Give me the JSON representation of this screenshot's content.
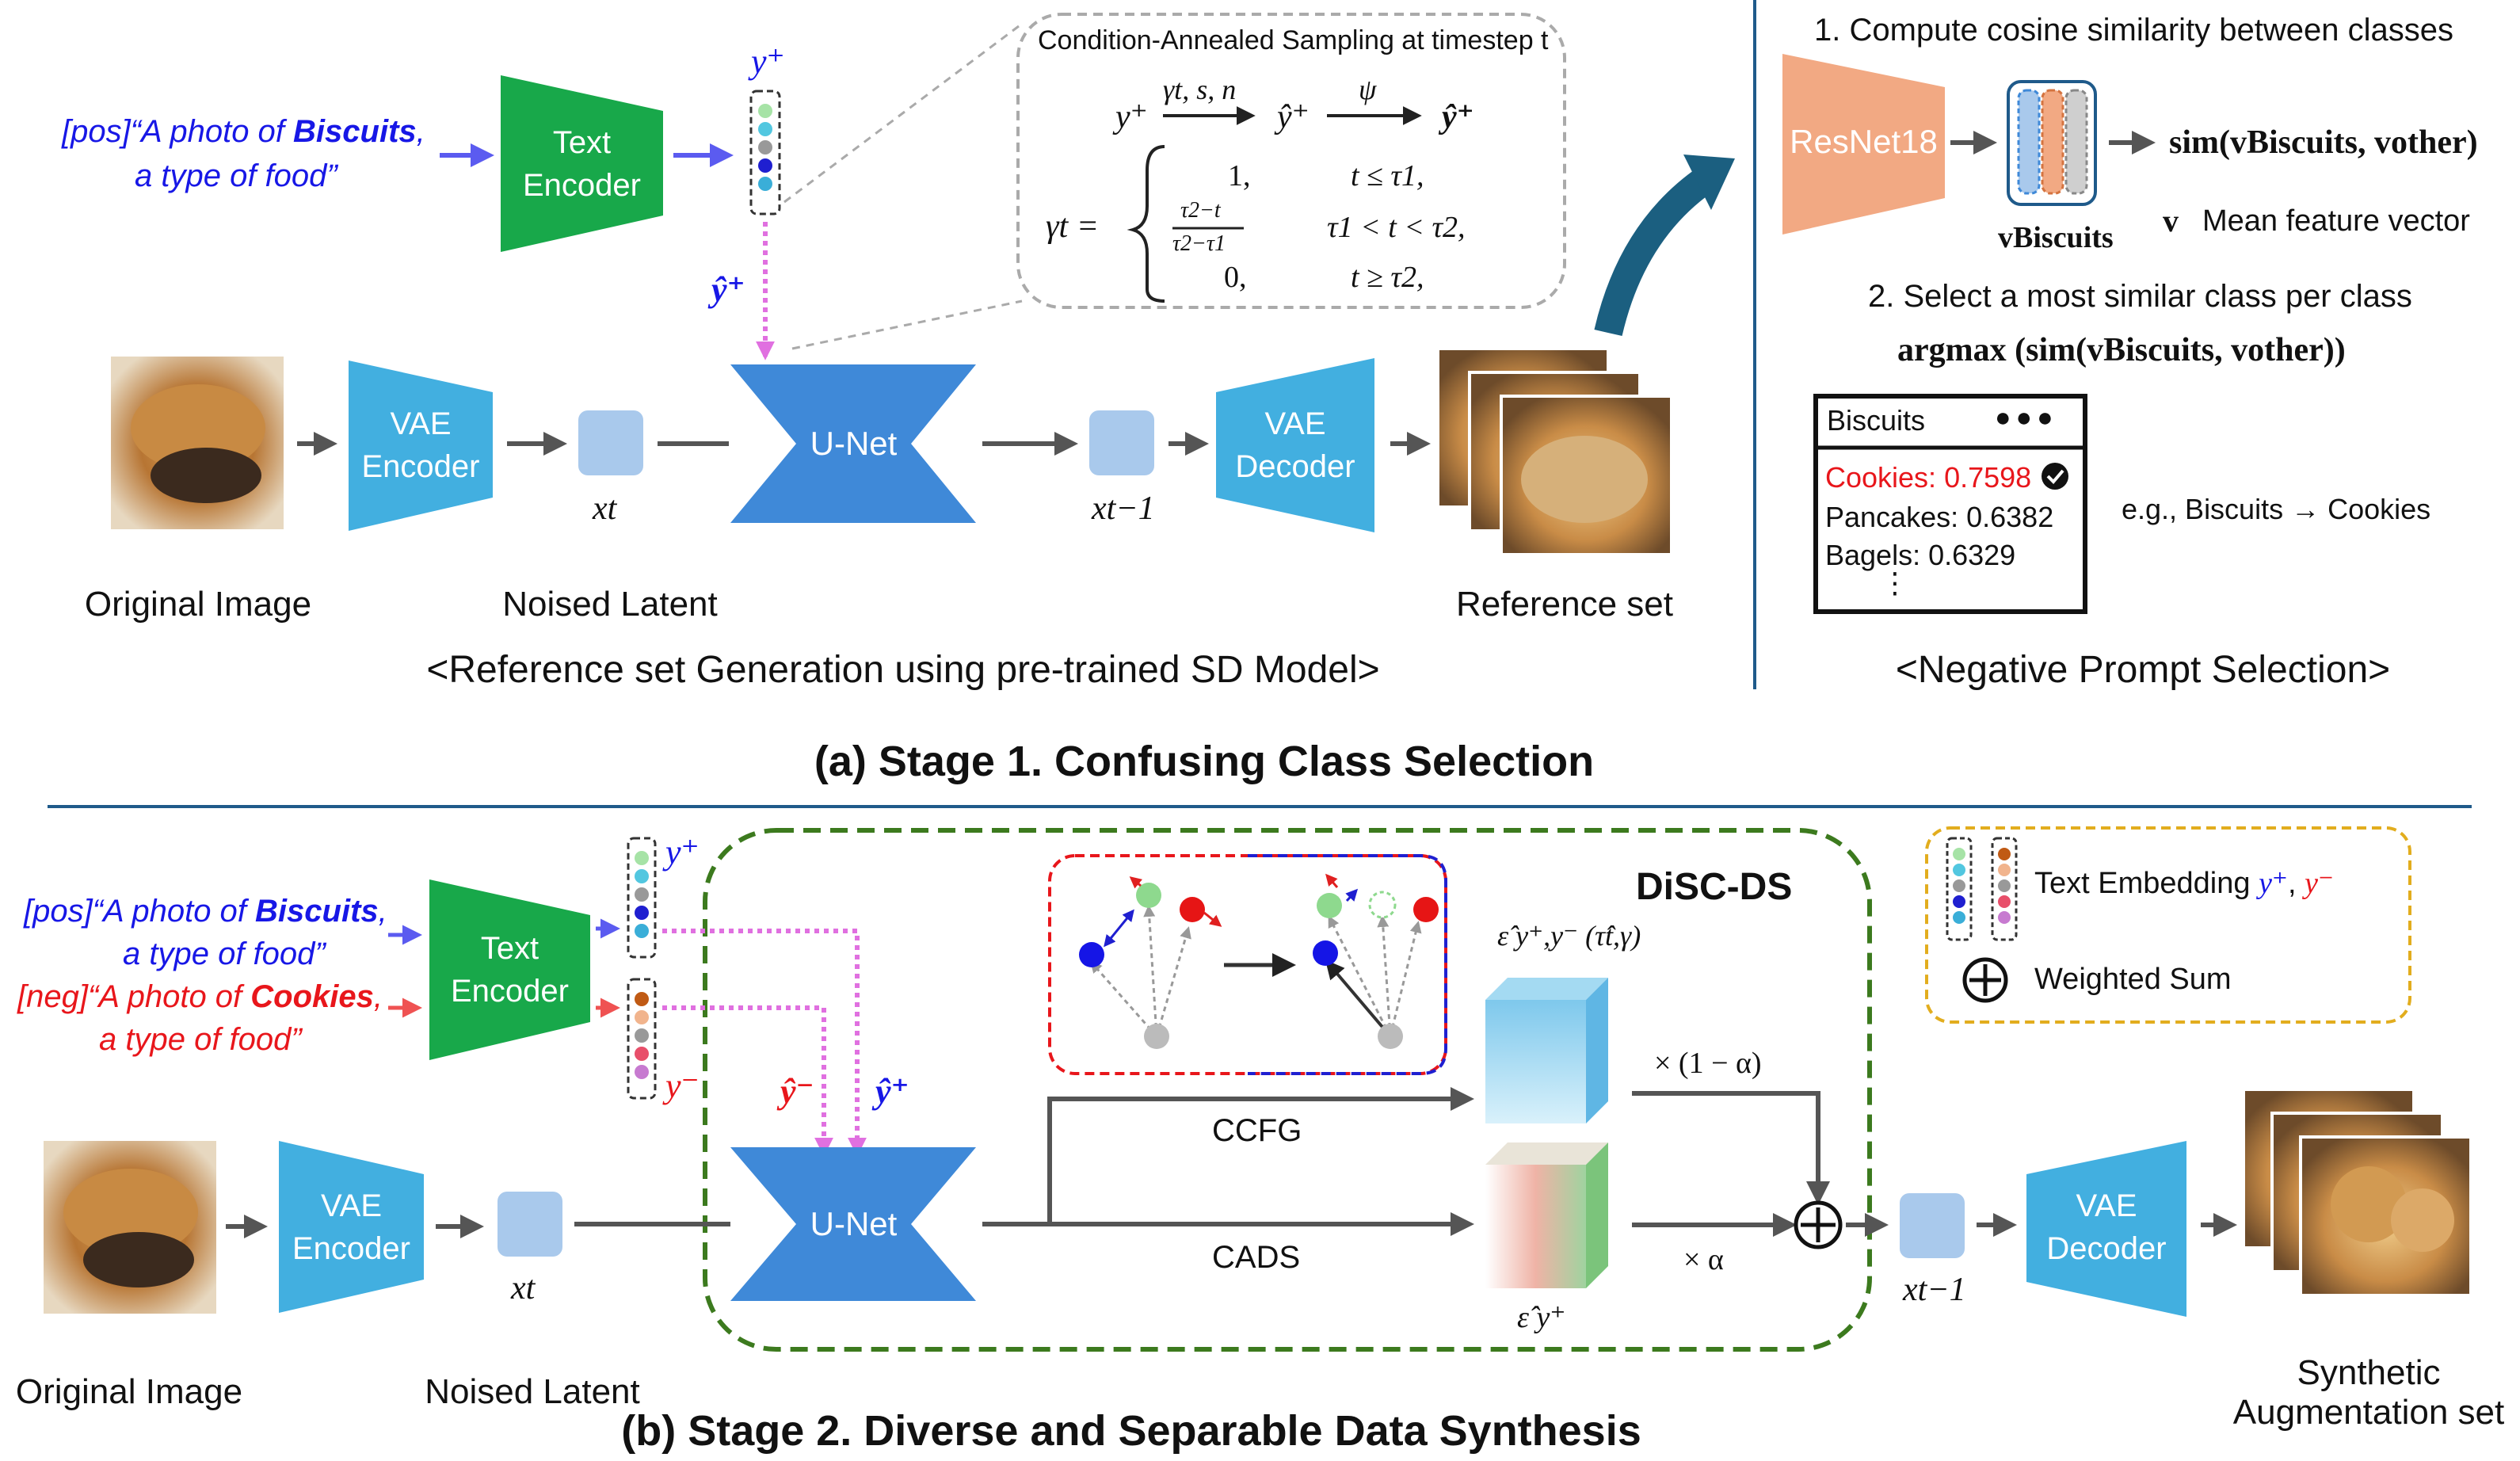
{
  "stage1": {
    "title": "(a) Stage 1. Confusing Class Selection",
    "pos_prompt_line1_pre": "[pos]“A photo of ",
    "pos_prompt_class": "Biscuits",
    "pos_prompt_line1_post": ",",
    "pos_prompt_line2": "a type of food”",
    "text_encoder_line1": "Text",
    "text_encoder_line2": "Encoder",
    "y_plus": "y⁺",
    "y_hat_plus": "ŷ⁺",
    "condition_title": "Condition-Annealed Sampling at timestep t",
    "cond_eq_left": "y⁺",
    "cond_eq_over1": "γt, s, n",
    "cond_eq_mid": "ŷ⁺",
    "cond_eq_over2": "ψ",
    "cond_eq_right": "ŷ⁺",
    "gamma_lhs": "γt =",
    "gamma_case1_val": "1,",
    "gamma_case1_cond": "t ≤ τ1,",
    "gamma_case2_num": "τ2−t",
    "gamma_case2_den": "τ2−τ1",
    "gamma_case2_cond": "τ1 < t < τ2,",
    "gamma_case3_val": "0,",
    "gamma_case3_cond": "t ≥ τ2,",
    "vae_encoder_line1": "VAE",
    "vae_encoder_line2": "Encoder",
    "unet": "U-Net",
    "vae_decoder_line1": "VAE",
    "vae_decoder_line2": "Decoder",
    "x_t": "xt",
    "x_t_minus_1": "xt−1",
    "original_image": "Original Image",
    "noised_latent": "Noised Latent",
    "reference_set": "Reference set",
    "subcaption": "<Reference set Generation using pre-trained SD Model>"
  },
  "negative_selection": {
    "step1": "1. Compute cosine similarity between classes",
    "resnet": "ResNet18",
    "v_biscuits": "vBiscuits",
    "sim_expr": "sim(vBiscuits, vother)",
    "mean_feature_v": "v",
    "mean_feature_label": "Mean feature vector",
    "step2": "2. Select a most similar class per class",
    "argmax_expr": "argmax (sim(vBiscuits, vother))",
    "list_header": "Biscuits",
    "list_dots": "●●●",
    "list_items": [
      {
        "text": "Cookies: 0.7598",
        "selected": true
      },
      {
        "text": "Pancakes: 0.6382",
        "selected": false
      },
      {
        "text": "Bagels: 0.6329",
        "selected": false
      }
    ],
    "list_more": "⋮",
    "example": "e.g., Biscuits → Cookies",
    "subcaption": "<Negative Prompt Selection>"
  },
  "stage2": {
    "title": "(b) Stage 2. Diverse and Separable Data Synthesis",
    "pos_prompt_line1_pre": "[pos]“A photo of ",
    "pos_prompt_class": "Biscuits",
    "pos_prompt_line1_post": ",",
    "pos_prompt_line2": "a type of food”",
    "neg_prompt_line1_pre": "[neg]“A photo of ",
    "neg_prompt_class": "Cookies",
    "neg_prompt_line1_post": ",",
    "neg_prompt_line2": "a type of food”",
    "text_encoder_line1": "Text",
    "text_encoder_line2": "Encoder",
    "y_plus": "y⁺",
    "y_minus": "y⁻",
    "y_hat_minus": "ŷ⁻",
    "y_hat_plus": "ŷ⁺",
    "disc_ds": "DiSC-DS",
    "eps_ccfg": "ε̂ y⁺,y⁻ (τ̂t,γ)",
    "eps_cads": "ε̂ y⁺",
    "times_one_minus_alpha": "× (1 − α)",
    "times_alpha": "× α",
    "ccfg": "CCFG",
    "cads": "CADS",
    "vae_encoder_line1": "VAE",
    "vae_encoder_line2": "Encoder",
    "unet": "U-Net",
    "vae_decoder_line1": "VAE",
    "vae_decoder_line2": "Decoder",
    "x_t": "xt",
    "x_t_minus_1": "xt−1",
    "original_image": "Original Image",
    "noised_latent": "Noised Latent",
    "synthetic_line1": "Synthetic",
    "synthetic_line2": "Augmentation set",
    "legend_text_embedding": "Text Embedding",
    "legend_y_plus": "y⁺",
    "legend_y_minus": "y⁻",
    "legend_weighted_sum": "Weighted Sum"
  },
  "colors": {
    "text_encoder": "#18a84a",
    "vae": "#42afe0",
    "unet": "#3f89d8",
    "latent": "#a9c9ec",
    "resnet": "#f2a983",
    "arrow": "#555555",
    "prompt_arrow_blue": "#5b5bf0",
    "prompt_arrow_red": "#ef5252",
    "dotted_pink": "#e070e0",
    "dashed_green": "#3c7a1e",
    "legend_border": "#e2ad1e",
    "divider": "#1f5a8a",
    "curved_arrow": "#1b5f80"
  }
}
